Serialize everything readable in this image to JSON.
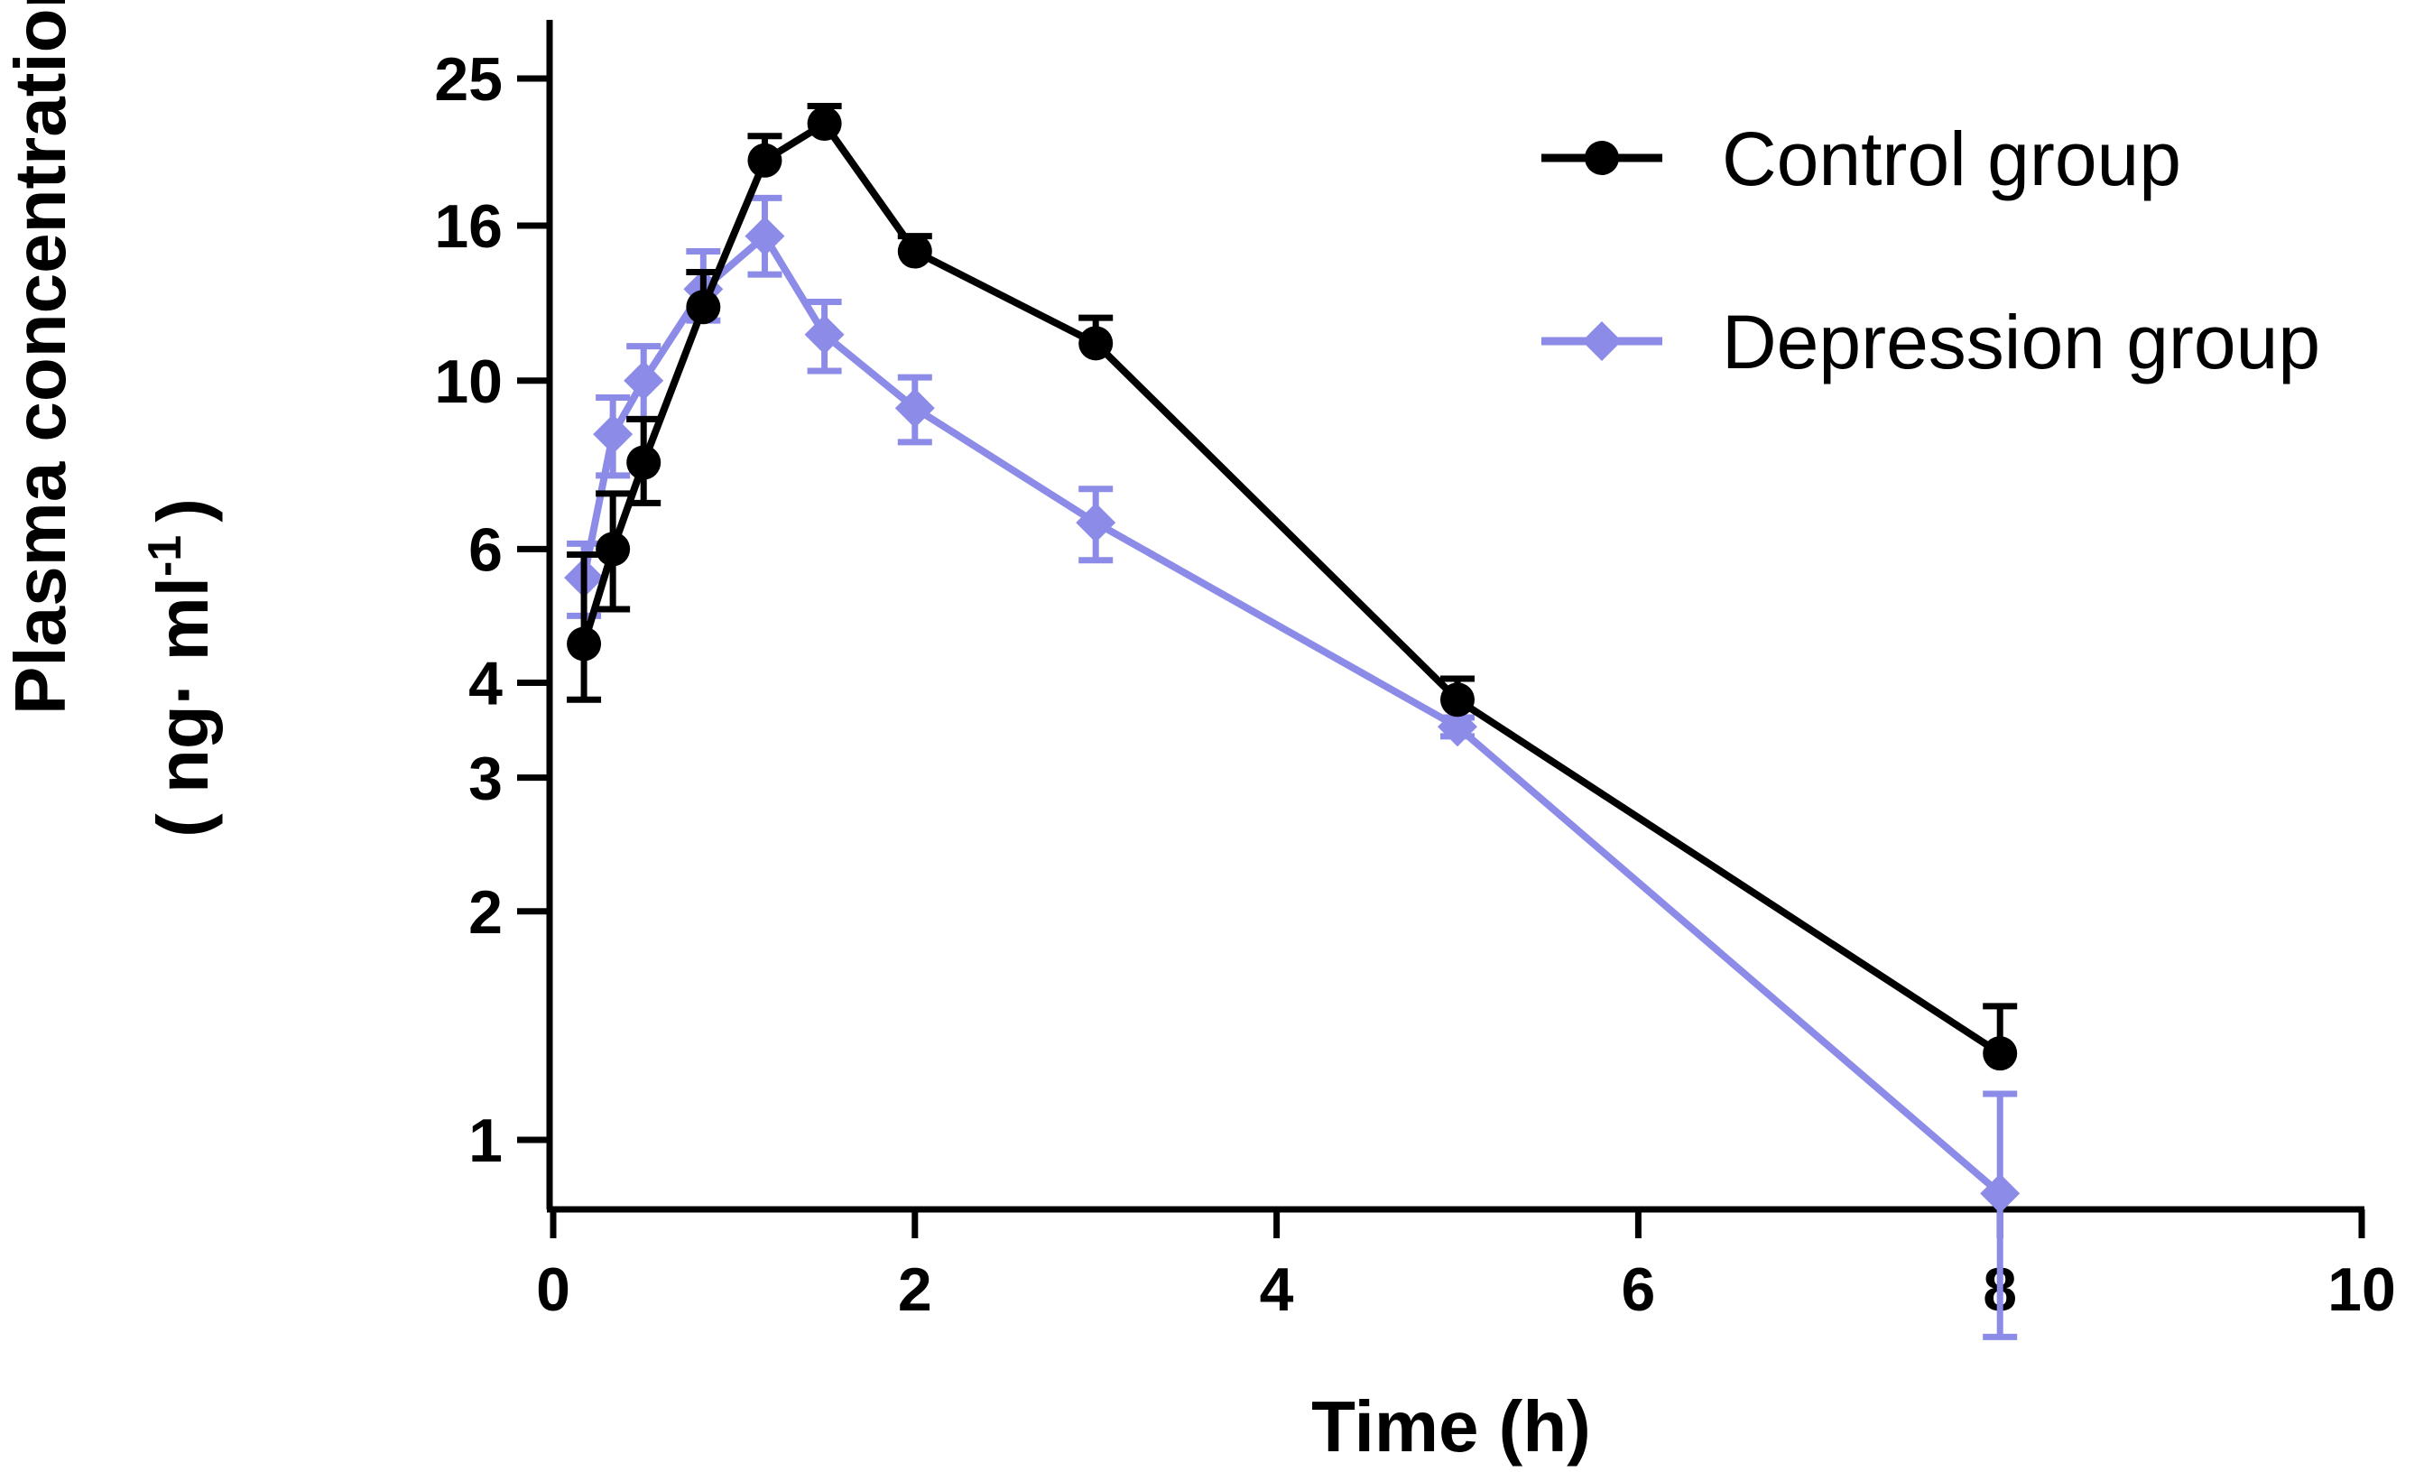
{
  "chart_data": {
    "type": "line",
    "xlabel": "Time (h)",
    "ylabel_line1": "Plasma concentration of Sax",
    "ylabel_line2": "( ng· ml",
    "ylabel_sup": "-1",
    "ylabel_close": ")",
    "xlim": [
      0,
      10
    ],
    "xticks": [
      0,
      2,
      4,
      6,
      8,
      10
    ],
    "xtick_labels": [
      "0",
      "2",
      "4",
      "6",
      "8",
      "10"
    ],
    "y_scale": "log",
    "yticks": [
      1,
      2,
      3,
      4,
      6,
      10,
      16,
      25
    ],
    "ytick_labels": [
      "1",
      "2",
      "3",
      "4",
      "6",
      "10",
      "16",
      "25"
    ],
    "legend_position": "top-right",
    "series": [
      {
        "name": "Control group",
        "color": "#000000",
        "marker": "circle",
        "x": [
          0.17,
          0.33,
          0.5,
          0.83,
          1.17,
          1.5,
          2,
          3,
          5,
          8
        ],
        "y": [
          4.5,
          6.0,
          7.8,
          12.5,
          19.5,
          21.8,
          14.8,
          11.2,
          3.8,
          1.3
        ],
        "err_up": [
          1.4,
          1.1,
          1.1,
          1.4,
          1.5,
          1.2,
          0.7,
          0.9,
          0.25,
          0.2
        ],
        "err_down": [
          0.7,
          1.0,
          0.9,
          1.4,
          1.5,
          1.2,
          0.7,
          0.9,
          0.25,
          0.2
        ],
        "err_style": "one-sided"
      },
      {
        "name": "Depression group",
        "color": "#8c8ce8",
        "marker": "diamond",
        "x": [
          0.17,
          0.33,
          0.5,
          0.83,
          1.17,
          1.5,
          2,
          3,
          5,
          8
        ],
        "y": [
          5.5,
          8.5,
          10.0,
          13.2,
          15.5,
          11.5,
          9.2,
          6.5,
          3.5,
          0.85
        ],
        "err_up": [
          0.6,
          1.0,
          1.1,
          1.6,
          1.9,
          1.2,
          0.9,
          0.7,
          0.1,
          0.3
        ],
        "err_down": [
          0.6,
          1.0,
          1.1,
          1.2,
          1.7,
          1.2,
          0.9,
          0.7,
          0.1,
          0.3
        ],
        "err_style": "two-sided"
      }
    ]
  }
}
